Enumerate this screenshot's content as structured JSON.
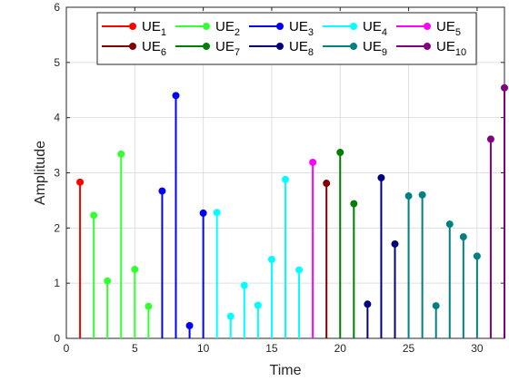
{
  "chart_data": {
    "type": "stem",
    "xlabel": "Time",
    "ylabel": "Amplitude",
    "xlim": [
      0,
      32
    ],
    "ylim": [
      0,
      6
    ],
    "x_ticks": [
      0,
      5,
      10,
      15,
      20,
      25,
      30
    ],
    "y_ticks": [
      0,
      1,
      2,
      3,
      4,
      5,
      6
    ],
    "grid": true,
    "legend_position": "top",
    "legend_columns": 5,
    "series": [
      {
        "name": "UE",
        "subscript": "1",
        "color": "#ff0000",
        "x": [
          1
        ],
        "y": [
          2.83
        ]
      },
      {
        "name": "UE",
        "subscript": "2",
        "color": "#33ff33",
        "x": [
          2,
          3,
          4,
          5,
          6
        ],
        "y": [
          2.23,
          1.04,
          3.34,
          1.25,
          0.58
        ]
      },
      {
        "name": "UE",
        "subscript": "3",
        "color": "#0000ff",
        "x": [
          7,
          8,
          9,
          10
        ],
        "y": [
          2.67,
          4.4,
          0.23,
          2.27
        ]
      },
      {
        "name": "UE",
        "subscript": "4",
        "color": "#00ffff",
        "x": [
          11,
          12,
          13,
          14,
          15,
          16,
          17
        ],
        "y": [
          2.28,
          0.4,
          0.96,
          0.6,
          1.43,
          2.88,
          1.24
        ]
      },
      {
        "name": "UE",
        "subscript": "5",
        "color": "#ff00ff",
        "x": [
          18
        ],
        "y": [
          3.19
        ]
      },
      {
        "name": "UE",
        "subscript": "6",
        "color": "#800000",
        "x": [
          19
        ],
        "y": [
          2.81
        ]
      },
      {
        "name": "UE",
        "subscript": "7",
        "color": "#008000",
        "x": [
          20,
          21
        ],
        "y": [
          3.37,
          2.44
        ]
      },
      {
        "name": "UE",
        "subscript": "8",
        "color": "#000080",
        "x": [
          22,
          23,
          24
        ],
        "y": [
          0.62,
          2.91,
          1.71
        ]
      },
      {
        "name": "UE",
        "subscript": "9",
        "color": "#008080",
        "x": [
          25,
          26,
          27,
          28,
          29,
          30
        ],
        "y": [
          2.58,
          2.6,
          0.59,
          2.07,
          1.84,
          1.49
        ]
      },
      {
        "name": "UE",
        "subscript": "10",
        "color": "#800080",
        "x": [
          31,
          32
        ],
        "y": [
          3.61,
          4.54
        ]
      }
    ]
  }
}
